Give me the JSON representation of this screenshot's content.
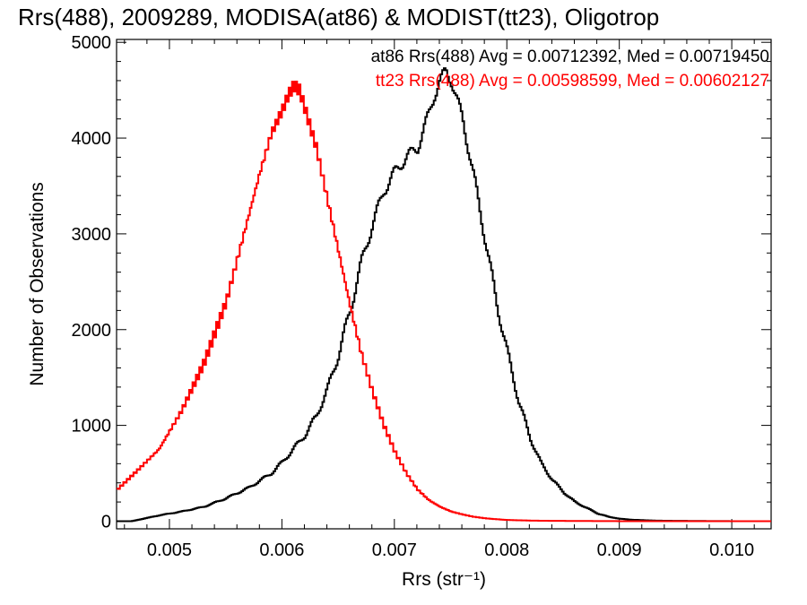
{
  "colors": {
    "series_0": "#000000",
    "series_1": "#ff0000"
  },
  "chart_data": {
    "type": "line",
    "title": "Rrs(488), 2009289, MODISA(at86) & MODIST(tt23), Oligotrop",
    "xlabel": "Rrs (str⁻¹)",
    "ylabel": "Number of Observations",
    "xlim": [
      0.00453,
      0.01035
    ],
    "ylim": [
      -80,
      5030
    ],
    "x_ticks": [
      "0.005",
      "0.006",
      "0.007",
      "0.008",
      "0.009",
      "0.010"
    ],
    "y_ticks": [
      "0",
      "1000",
      "2000",
      "3000",
      "4000",
      "5000"
    ],
    "grid": false,
    "legend": [
      "at86 Rrs(488) Avg = 0.00712392, Med = 0.00719450",
      "tt23 Rrs(488) Avg = 0.00598599, Med = 0.00602127"
    ],
    "series": [
      {
        "name": "at86 Rrs(488)",
        "color": "#000000",
        "x": [
          0.00453,
          0.0047,
          0.0049,
          0.0051,
          0.0053,
          0.0055,
          0.0057,
          0.0059,
          0.006,
          0.0061,
          0.0062,
          0.0063,
          0.0064,
          0.0065,
          0.0066,
          0.0067,
          0.0068,
          0.0069,
          0.007,
          0.0071,
          0.0072,
          0.0073,
          0.00735,
          0.0074,
          0.00745,
          0.0075,
          0.0076,
          0.0077,
          0.0078,
          0.0079,
          0.008,
          0.0081,
          0.0082,
          0.0083,
          0.0084,
          0.0085,
          0.0086,
          0.0087,
          0.0088,
          0.0089,
          0.009,
          0.0091,
          0.0093,
          0.0095,
          0.0098,
          0.01,
          0.01035
        ],
        "y": [
          -30,
          10,
          60,
          100,
          150,
          240,
          350,
          500,
          620,
          760,
          900,
          1100,
          1380,
          1750,
          2200,
          2700,
          3100,
          3450,
          3650,
          3800,
          3900,
          4250,
          4450,
          4600,
          4700,
          4600,
          4200,
          3600,
          2950,
          2300,
          1750,
          1250,
          870,
          600,
          430,
          300,
          200,
          140,
          80,
          45,
          25,
          15,
          6,
          3,
          1,
          0,
          0
        ]
      },
      {
        "name": "tt23 Rrs(488)",
        "color": "#ff0000",
        "x": [
          0.00453,
          0.0047,
          0.0049,
          0.0051,
          0.0053,
          0.0055,
          0.0056,
          0.0057,
          0.0058,
          0.0059,
          0.006,
          0.00605,
          0.0061,
          0.00615,
          0.0062,
          0.0063,
          0.0064,
          0.0065,
          0.0066,
          0.0067,
          0.0068,
          0.0069,
          0.007,
          0.0071,
          0.0072,
          0.0073,
          0.0074,
          0.0075,
          0.0076,
          0.0077,
          0.0078,
          0.0079,
          0.008,
          0.0082,
          0.0084,
          0.0086,
          0.0088,
          0.009,
          0.0095,
          0.01035
        ],
        "y": [
          330,
          520,
          750,
          1150,
          1650,
          2300,
          2750,
          3200,
          3650,
          4050,
          4300,
          4450,
          4550,
          4500,
          4300,
          3900,
          3350,
          2800,
          2250,
          1750,
          1350,
          1000,
          720,
          500,
          330,
          220,
          150,
          100,
          70,
          45,
          30,
          20,
          12,
          6,
          3,
          2,
          1,
          0,
          0,
          0
        ]
      }
    ]
  }
}
